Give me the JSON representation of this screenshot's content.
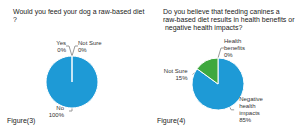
{
  "chart_data": [
    {
      "type": "pie",
      "title": "Would you feed your dog a raw-based diet?",
      "caption": "Figure(3)",
      "categories": [
        "Not Sure",
        "No",
        "Yes"
      ],
      "values": [
        0,
        100,
        0
      ],
      "value_labels": [
        "0%",
        "100%",
        "0%"
      ],
      "colors": [
        "#3ea83e",
        "#1e9ad6",
        "#f0a030"
      ],
      "data_labels": true
    },
    {
      "type": "pie",
      "title": "Do you believe that feeding canines a raw-based diet results in health benefits or negative health impacts?",
      "caption": "Figure(4)",
      "categories": [
        "Health benefits",
        "Negative health impacts",
        "Not Sure"
      ],
      "values": [
        0,
        85,
        15
      ],
      "value_labels": [
        "0%",
        "85%",
        "15%"
      ],
      "colors": [
        "#f0a030",
        "#1e9ad6",
        "#3ea83e"
      ],
      "data_labels": true
    }
  ]
}
